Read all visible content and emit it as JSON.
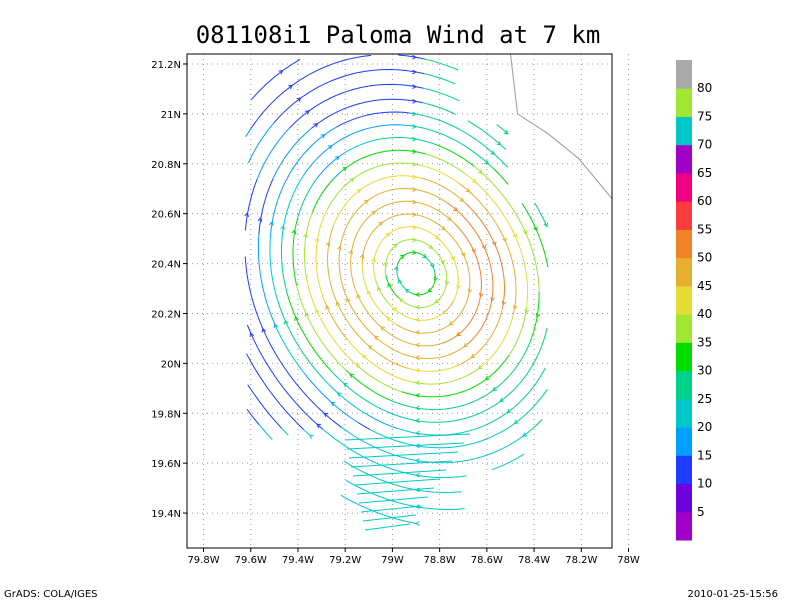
{
  "title": "081108i1 Paloma Wind at 7 km",
  "footer": {
    "left": "GrADS: COLA/IGES",
    "right": "2010-01-25-15:56"
  },
  "chart_data": {
    "type": "streamline",
    "title": "081108i1 Paloma Wind at 7 km",
    "x_tick_labels": [
      "79.8W",
      "79.6W",
      "79.4W",
      "79.2W",
      "79W",
      "78.8W",
      "78.6W",
      "78.4W",
      "78.2W",
      "78W"
    ],
    "x_ticks": [
      -79.8,
      -79.6,
      -79.4,
      -79.2,
      -79.0,
      -78.8,
      -78.6,
      -78.4,
      -78.2,
      -78.0
    ],
    "y_tick_labels": [
      "19.4N",
      "19.6N",
      "19.8N",
      "20N",
      "20.2N",
      "20.4N",
      "20.6N",
      "20.8N",
      "21N",
      "21.2N"
    ],
    "y_ticks": [
      19.4,
      19.6,
      19.8,
      20.0,
      20.2,
      20.4,
      20.6,
      20.8,
      21.0,
      21.2
    ],
    "xlim": [
      -79.87,
      -78.07
    ],
    "ylim": [
      19.26,
      21.24
    ],
    "grid": true,
    "center": [
      -78.9,
      20.36
    ],
    "colorbar": {
      "labels": [
        "5",
        "10",
        "15",
        "20",
        "25",
        "30",
        "35",
        "40",
        "45",
        "50",
        "55",
        "60",
        "65",
        "70",
        "75",
        "80"
      ],
      "colors": [
        "#a000c8",
        "#6e00dc",
        "#1e3cff",
        "#00a0ff",
        "#00c8c8",
        "#00d28c",
        "#00dc00",
        "#a0e632",
        "#e6dc32",
        "#e6af2d",
        "#f08228",
        "#fa3c3c",
        "#f00082",
        "#a000c8",
        "#00c8c8",
        "#a0e632",
        "#aaaaaa"
      ]
    },
    "coastline": [
      [
        -78.5,
        21.24
      ],
      [
        -78.47,
        21.0
      ],
      [
        -78.34,
        20.92
      ],
      [
        -78.21,
        20.82
      ],
      [
        -78.07,
        20.66
      ]
    ]
  }
}
